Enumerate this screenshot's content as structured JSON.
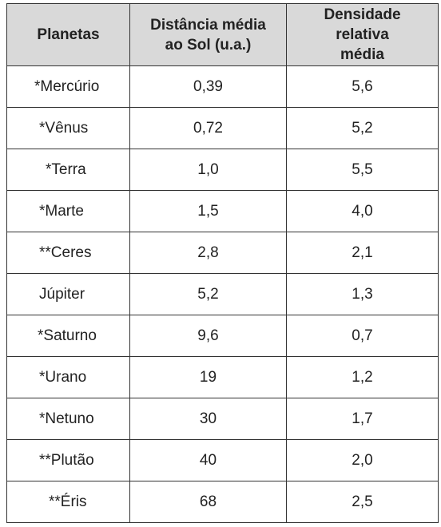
{
  "table": {
    "headers": [
      "Planetas",
      "Distância média ao Sol (u.a.)",
      "Densidade relativa média"
    ],
    "rows": [
      [
        "*Mercúrio",
        "0,39",
        "5,6"
      ],
      [
        "*Vênus",
        "0,72",
        "5,2"
      ],
      [
        "*Terra",
        "1,0",
        "5,5"
      ],
      [
        "*Marte",
        "1,5",
        "4,0"
      ],
      [
        "**Ceres",
        "2,8",
        "2,1"
      ],
      [
        "Júpiter",
        "5,2",
        "1,3"
      ],
      [
        "*Saturno",
        "9,6",
        "0,7"
      ],
      [
        "*Urano",
        "19",
        "1,2"
      ],
      [
        "*Netuno",
        "30",
        "1,7"
      ],
      [
        "**Plutão",
        "40",
        "2,0"
      ],
      [
        "**Éris",
        "68",
        "2,5"
      ]
    ]
  }
}
